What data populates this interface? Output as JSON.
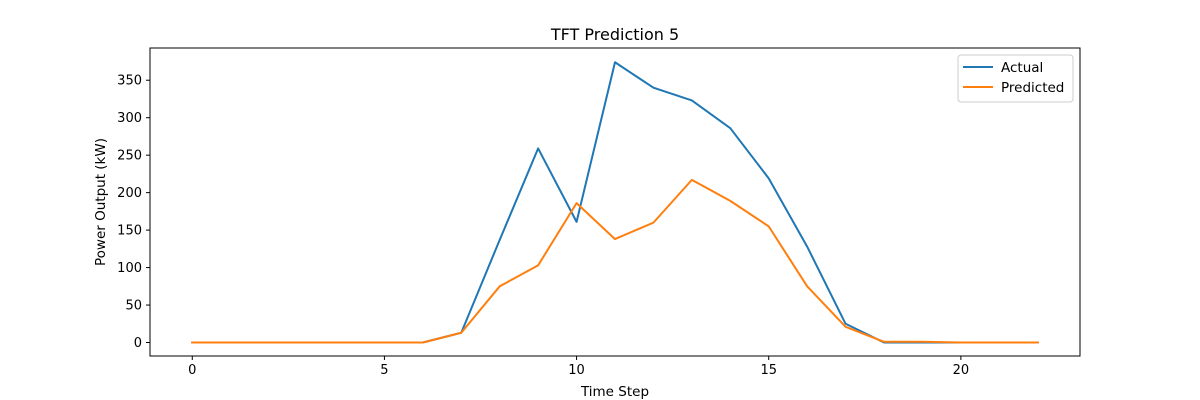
{
  "chart_data": {
    "type": "line",
    "title": "TFT Prediction 5",
    "xlabel": "Time Step",
    "ylabel": "Power Output (kW)",
    "xlim": [
      -1.1,
      23.1
    ],
    "ylim": [
      -18,
      393
    ],
    "xticks": [
      0,
      5,
      10,
      15,
      20
    ],
    "yticks": [
      0,
      50,
      100,
      150,
      200,
      250,
      300,
      350
    ],
    "grid": false,
    "legend": "top-right",
    "x": [
      0,
      1,
      2,
      3,
      4,
      5,
      6,
      7,
      8,
      9,
      10,
      11,
      12,
      13,
      14,
      15,
      16,
      17,
      18,
      19,
      20,
      21,
      22
    ],
    "series": [
      {
        "name": "Actual",
        "color": "#1f77b4",
        "values": [
          0,
          0,
          0,
          0,
          0,
          0,
          0,
          13,
          137,
          259,
          161,
          374,
          340,
          323,
          286,
          219,
          128,
          25,
          0,
          0,
          0,
          0,
          0
        ]
      },
      {
        "name": "Predicted",
        "color": "#ff7f0e",
        "values": [
          0,
          0,
          0,
          0,
          0,
          0,
          0,
          13,
          75,
          103,
          186,
          138,
          160,
          217,
          189,
          155,
          75,
          21,
          1,
          1,
          0,
          0,
          0
        ]
      }
    ]
  }
}
